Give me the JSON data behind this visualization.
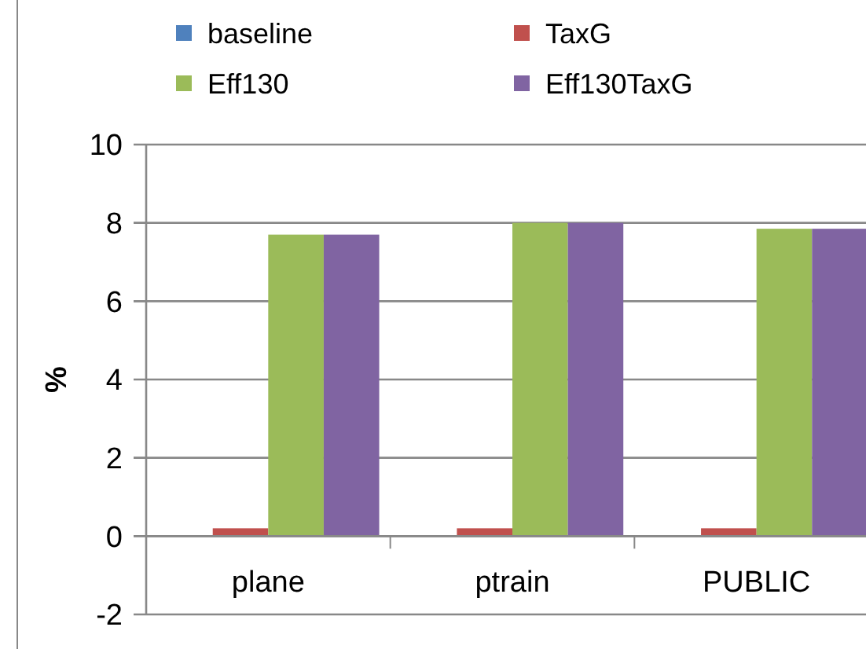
{
  "chart_data": {
    "type": "bar",
    "ylabel": "%",
    "categories": [
      "plane",
      "ptrain",
      "PUBLIC"
    ],
    "series": [
      {
        "name": "baseline",
        "color": "#4f81bd",
        "values": [
          0,
          0,
          0
        ]
      },
      {
        "name": "TaxG",
        "color": "#c0504d",
        "values": [
          0.2,
          0.2,
          0.2
        ]
      },
      {
        "name": "Eff130",
        "color": "#9bbb59",
        "values": [
          7.7,
          8.0,
          7.85
        ]
      },
      {
        "name": "Eff130TaxG",
        "color": "#8064a2",
        "values": [
          7.7,
          8.0,
          7.85
        ]
      }
    ],
    "ylim": [
      -2,
      10
    ],
    "yticks": [
      -2,
      0,
      2,
      4,
      6,
      8,
      10
    ],
    "grid": "y",
    "legend": "top"
  }
}
